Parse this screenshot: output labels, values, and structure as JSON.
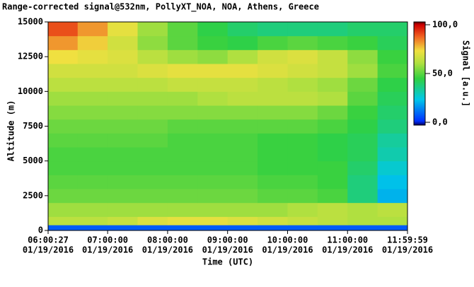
{
  "chart_data": {
    "type": "heatmap",
    "title": "Range-corrected signal@532nm, PollyXT_NOA, NOA, Athens, Greece",
    "x_label": "Time (UTC)",
    "y_label": "Altitude (m)",
    "colorbar_label": "Signal [a.u.]",
    "xbins": [
      6.0075,
      6.5,
      7,
      7.5,
      8,
      8.5,
      9,
      9.5,
      10,
      10.5,
      11,
      11.5,
      11.99972
    ],
    "ybins": [
      0,
      400,
      1000,
      2000,
      3000,
      4000,
      5000,
      6000,
      7000,
      8000,
      9000,
      10000,
      11000,
      12000,
      13000,
      14000,
      15000
    ],
    "values": [
      [
        10,
        10,
        10,
        10,
        10,
        10,
        10,
        10,
        10,
        10,
        10,
        10
      ],
      [
        62,
        62,
        64,
        68,
        70,
        70,
        68,
        66,
        64,
        62,
        60,
        60
      ],
      [
        58,
        58,
        58,
        58,
        58,
        58,
        58,
        58,
        60,
        62,
        60,
        62
      ],
      [
        52,
        52,
        52,
        52,
        52,
        52,
        52,
        50,
        50,
        48,
        38,
        22
      ],
      [
        50,
        50,
        50,
        50,
        50,
        50,
        50,
        48,
        48,
        46,
        38,
        24
      ],
      [
        48,
        48,
        48,
        48,
        48,
        48,
        48,
        46,
        46,
        46,
        40,
        28
      ],
      [
        48,
        48,
        48,
        48,
        48,
        48,
        48,
        46,
        46,
        44,
        42,
        32
      ],
      [
        50,
        50,
        50,
        50,
        48,
        48,
        48,
        46,
        46,
        44,
        42,
        34
      ],
      [
        52,
        52,
        52,
        52,
        50,
        50,
        50,
        50,
        50,
        48,
        44,
        38
      ],
      [
        55,
        55,
        55,
        55,
        55,
        55,
        55,
        55,
        55,
        52,
        46,
        40
      ],
      [
        58,
        58,
        58,
        58,
        58,
        60,
        62,
        62,
        62,
        60,
        50,
        42
      ],
      [
        62,
        62,
        62,
        62,
        64,
        64,
        64,
        62,
        60,
        58,
        52,
        44
      ],
      [
        66,
        66,
        66,
        68,
        70,
        70,
        70,
        68,
        66,
        64,
        58,
        48
      ],
      [
        72,
        70,
        68,
        62,
        58,
        56,
        60,
        66,
        68,
        64,
        56,
        46
      ],
      [
        80,
        74,
        66,
        56,
        50,
        46,
        44,
        48,
        50,
        48,
        46,
        42
      ],
      [
        88,
        80,
        70,
        58,
        50,
        44,
        40,
        38,
        38,
        38,
        40,
        40
      ]
    ],
    "xlim": [
      6.0075,
      11.99972
    ],
    "xticks": [
      {
        "value": 6.0075,
        "label": "06:00:27",
        "date": "01/19/2016"
      },
      {
        "value": 7,
        "label": "07:00:00",
        "date": "01/19/2016"
      },
      {
        "value": 8,
        "label": "08:00:00",
        "date": "01/19/2016"
      },
      {
        "value": 9,
        "label": "09:00:00",
        "date": "01/19/2016"
      },
      {
        "value": 10,
        "label": "10:00:00",
        "date": "01/19/2016"
      },
      {
        "value": 11,
        "label": "11:00:00",
        "date": "01/19/2016"
      },
      {
        "value": 11.99972,
        "label": "11:59:59",
        "date": "01/19/2016"
      }
    ],
    "ylim": [
      0,
      15000
    ],
    "yticks": [
      0,
      2500,
      5000,
      7500,
      10000,
      12500,
      15000
    ],
    "clim": [
      0,
      100
    ],
    "cticks": [
      {
        "value": 0,
        "label": "0,0"
      },
      {
        "value": 50,
        "label": "50,0"
      },
      {
        "value": 100,
        "label": "100,0"
      }
    ],
    "colorscale": [
      [
        0,
        "#000060"
      ],
      [
        0.04,
        "#0030ff"
      ],
      [
        0.25,
        "#00c8e8"
      ],
      [
        0.45,
        "#30d040"
      ],
      [
        0.6,
        "#b0e040"
      ],
      [
        0.72,
        "#f0e040"
      ],
      [
        0.86,
        "#f06020"
      ],
      [
        0.97,
        "#d00000"
      ],
      [
        1,
        "#600000"
      ]
    ]
  }
}
